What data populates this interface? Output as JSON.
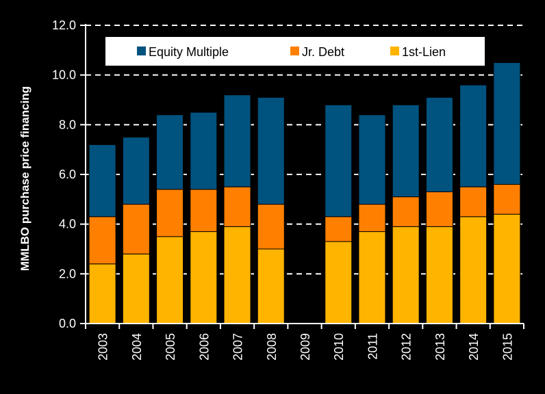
{
  "chart_data": {
    "type": "bar",
    "stacked": true,
    "title": "",
    "xlabel": "",
    "ylabel": "MMLBO purchase price financing",
    "ylim": [
      0,
      12
    ],
    "yticks": [
      "0.0",
      "2.0",
      "4.0",
      "6.0",
      "8.0",
      "10.0",
      "12.0"
    ],
    "grid": true,
    "legend_position": "top",
    "categories": [
      "2003",
      "2004",
      "2005",
      "2006",
      "2007",
      "2008",
      "2009",
      "2010",
      "2011",
      "2012",
      "2013",
      "2014",
      "2015"
    ],
    "series": [
      {
        "name": "1st-Lien",
        "color": "#FFB400",
        "values": [
          2.4,
          2.8,
          3.5,
          3.7,
          3.9,
          3.0,
          0,
          3.3,
          3.7,
          3.9,
          3.9,
          4.3,
          4.4
        ]
      },
      {
        "name": "Jr. Debt",
        "color": "#FF8000",
        "values": [
          1.9,
          2.0,
          1.9,
          1.7,
          1.6,
          1.8,
          0,
          1.0,
          1.1,
          1.2,
          1.4,
          1.2,
          1.2
        ]
      },
      {
        "name": "Equity Multiple",
        "color": "#00527F",
        "values": [
          2.9,
          2.7,
          3.0,
          3.1,
          3.7,
          4.3,
          0,
          4.5,
          3.6,
          3.7,
          3.8,
          4.1,
          4.9
        ]
      }
    ],
    "legend_order": [
      "Equity Multiple",
      "Jr. Debt",
      "1st-Lien"
    ]
  }
}
